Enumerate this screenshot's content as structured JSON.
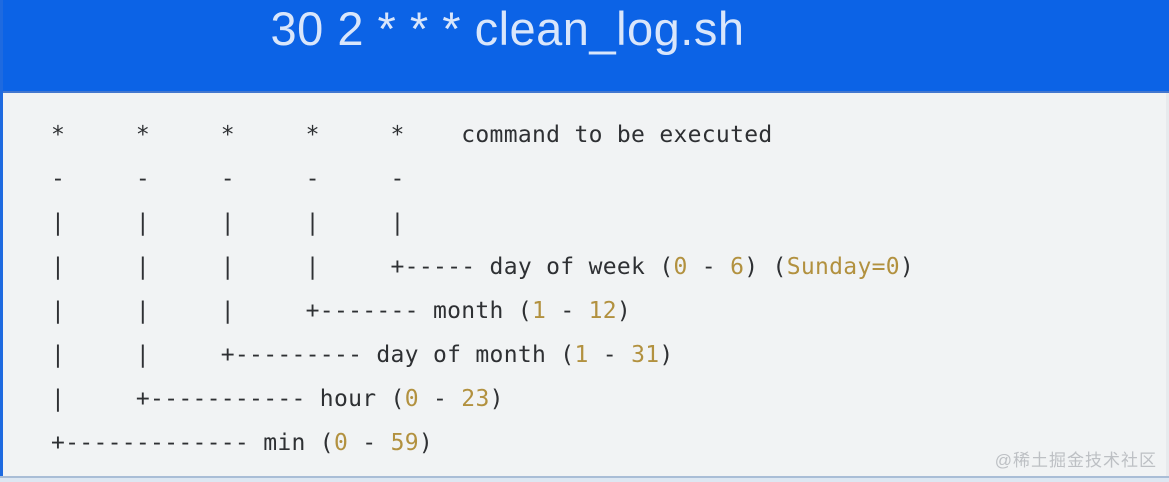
{
  "header": {
    "title": "30 2 * * * clean_log.sh"
  },
  "diagram": {
    "lines": [
      {
        "segments": [
          {
            "color": "dark",
            "text": "*     *     *     *     *    command to be executed"
          }
        ]
      },
      {
        "segments": [
          {
            "color": "dark",
            "text": "-     -     -     -     -"
          }
        ]
      },
      {
        "segments": [
          {
            "color": "dark",
            "text": "|     |     |     |     |"
          }
        ]
      },
      {
        "segments": [
          {
            "color": "dark",
            "text": "|     |     |     |     +----- day of week ("
          },
          {
            "color": "gold",
            "text": "0"
          },
          {
            "color": "dark",
            "text": " - "
          },
          {
            "color": "gold",
            "text": "6"
          },
          {
            "color": "dark",
            "text": ") ("
          },
          {
            "color": "gold",
            "text": "Sunday=0"
          },
          {
            "color": "dark",
            "text": ")"
          }
        ]
      },
      {
        "segments": [
          {
            "color": "dark",
            "text": "|     |     |     +------- month ("
          },
          {
            "color": "gold",
            "text": "1"
          },
          {
            "color": "dark",
            "text": " - "
          },
          {
            "color": "gold",
            "text": "12"
          },
          {
            "color": "dark",
            "text": ")"
          }
        ]
      },
      {
        "segments": [
          {
            "color": "dark",
            "text": "|     |     +--------- day of month ("
          },
          {
            "color": "gold",
            "text": "1"
          },
          {
            "color": "dark",
            "text": " - "
          },
          {
            "color": "gold",
            "text": "31"
          },
          {
            "color": "dark",
            "text": ")"
          }
        ]
      },
      {
        "segments": [
          {
            "color": "dark",
            "text": "|     +----------- hour ("
          },
          {
            "color": "gold",
            "text": "0"
          },
          {
            "color": "dark",
            "text": " - "
          },
          {
            "color": "gold",
            "text": "23"
          },
          {
            "color": "dark",
            "text": ")"
          }
        ]
      },
      {
        "segments": [
          {
            "color": "dark",
            "text": "+------------- min ("
          },
          {
            "color": "gold",
            "text": "0"
          },
          {
            "color": "dark",
            "text": " - "
          },
          {
            "color": "gold",
            "text": "59"
          },
          {
            "color": "dark",
            "text": ")"
          }
        ]
      }
    ]
  },
  "watermark": {
    "text": "@稀土掘金技术社区"
  },
  "colors": {
    "header_bg": "#0c63e6",
    "header_text": "#d9e6fb",
    "panel_bg": "#f1f3f4",
    "dark": "#2e3033",
    "gold": "#b2913f",
    "watermark": "#bdc0c4",
    "left_border": "#1e6ae0"
  }
}
